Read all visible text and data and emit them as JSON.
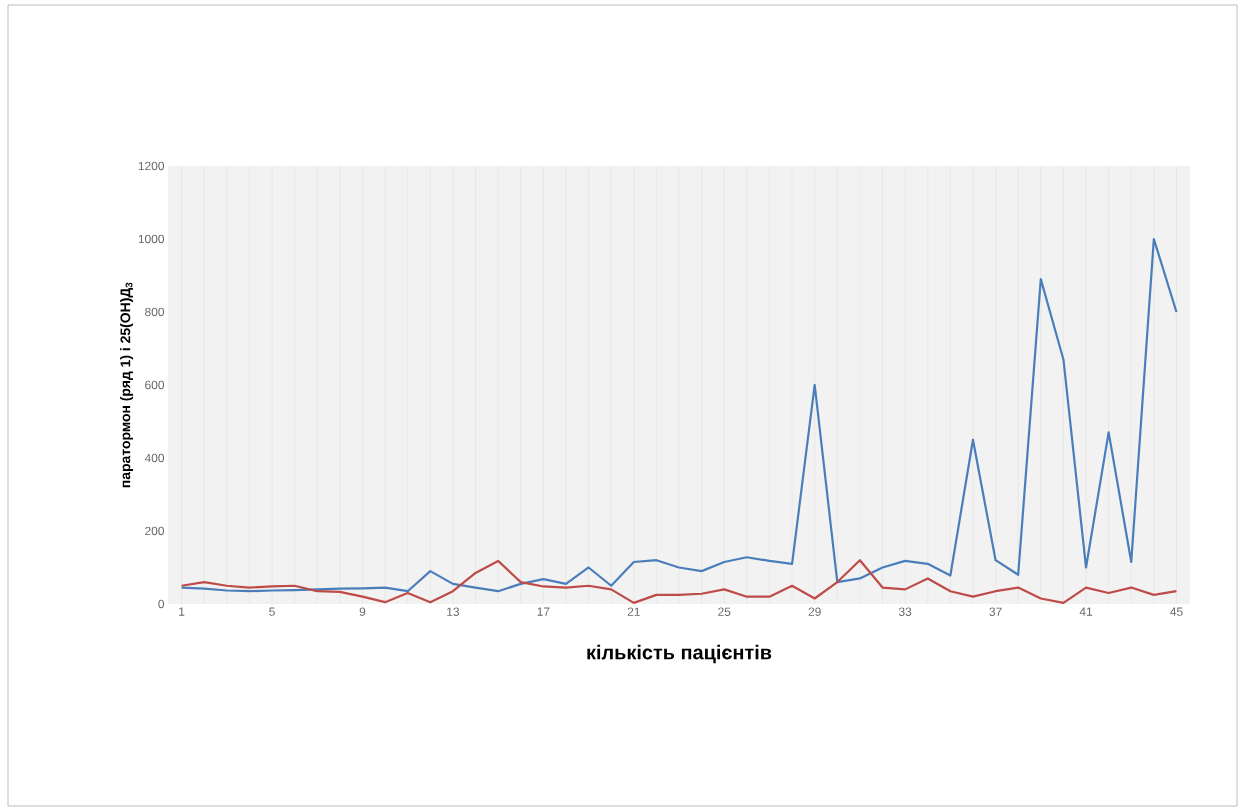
{
  "chart_data": {
    "type": "line",
    "xlabel": "кількість пацієнтів",
    "ylabel": "паратормон (ряд 1) і 25(ОН)Д$_{3}$",
    "categories": [
      "1",
      null,
      null,
      null,
      "5",
      null,
      null,
      null,
      "9",
      null,
      null,
      null,
      "13",
      null,
      null,
      null,
      "17",
      null,
      null,
      null,
      "21",
      null,
      null,
      null,
      "25",
      null,
      null,
      null,
      "29",
      null,
      null,
      null,
      "33",
      null,
      null,
      null,
      "37",
      null,
      null,
      null,
      "41",
      null,
      null,
      null,
      "45"
    ],
    "series": [
      {
        "color": "#4a7ebb",
        "values": [
          45,
          42,
          37,
          35,
          37,
          38,
          40,
          42,
          43,
          45,
          35,
          90,
          55,
          45,
          35,
          55,
          68,
          55,
          100,
          50,
          115,
          120,
          100,
          90,
          115,
          128,
          118,
          110,
          600,
          60,
          70,
          100,
          118,
          110,
          78,
          450,
          120,
          80,
          890,
          670,
          100,
          470,
          115,
          1000,
          800
        ]
      },
      {
        "color": "#be4b48",
        "values": [
          50,
          60,
          50,
          45,
          48,
          50,
          35,
          33,
          20,
          5,
          30,
          5,
          35,
          85,
          118,
          60,
          48,
          45,
          50,
          40,
          3,
          25,
          25,
          28,
          40,
          20,
          20,
          50,
          15,
          60,
          120,
          45,
          40,
          70,
          35,
          20,
          35,
          45,
          15,
          3,
          45,
          30,
          45,
          25,
          35
        ]
      }
    ],
    "ylim": [
      0,
      1200
    ],
    "yticks": [
      0,
      200,
      400,
      600,
      800,
      1000,
      1200
    ],
    "grid": "x",
    "marker": "none",
    "line_style": "solid"
  }
}
